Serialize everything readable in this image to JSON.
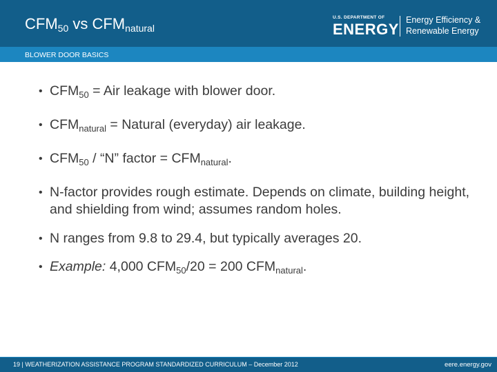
{
  "header": {
    "title_main": "CFM",
    "title_sub1": "50",
    "title_mid": " vs CFM",
    "title_sub2": "natural"
  },
  "logo": {
    "dept": "U.S. DEPARTMENT OF",
    "energy": "ENERGY",
    "eere_line1": "Energy Efficiency &",
    "eere_line2": "Renewable Energy"
  },
  "section": {
    "label": "BLOWER DOOR BASICS"
  },
  "bullets": {
    "b1": {
      "a": "CFM",
      "sub": "50",
      "b": " = Air leakage with blower door."
    },
    "b2": {
      "a": "CFM",
      "sub": "natural",
      "b": " = Natural (everyday) air leakage."
    },
    "b3": {
      "a": "CFM",
      "sub1": "50",
      "b": " / “N” factor = CFM",
      "sub2": "natural",
      "c": "."
    },
    "b4": {
      "text": "N-factor provides rough estimate. Depends on climate, building height, and shielding from wind; assumes random holes."
    },
    "b5": {
      "text": "N ranges from 9.8 to 29.4, but typically averages 20."
    },
    "b6": {
      "em": "Example:",
      "a": " 4,000 CFM",
      "sub1": "50",
      "b": "/20 = 200 CFM",
      "sub2": "natural",
      "c": "."
    }
  },
  "footer": {
    "left": "19 | WEATHERIZATION ASSISTANCE PROGRAM STANDARDIZED CURRICULUM – December 2012",
    "right": "eere.energy.gov"
  },
  "colors": {
    "header_bg": "#125e8a",
    "section_bar": "#1c86c0",
    "body_text": "#3b3b3b"
  }
}
